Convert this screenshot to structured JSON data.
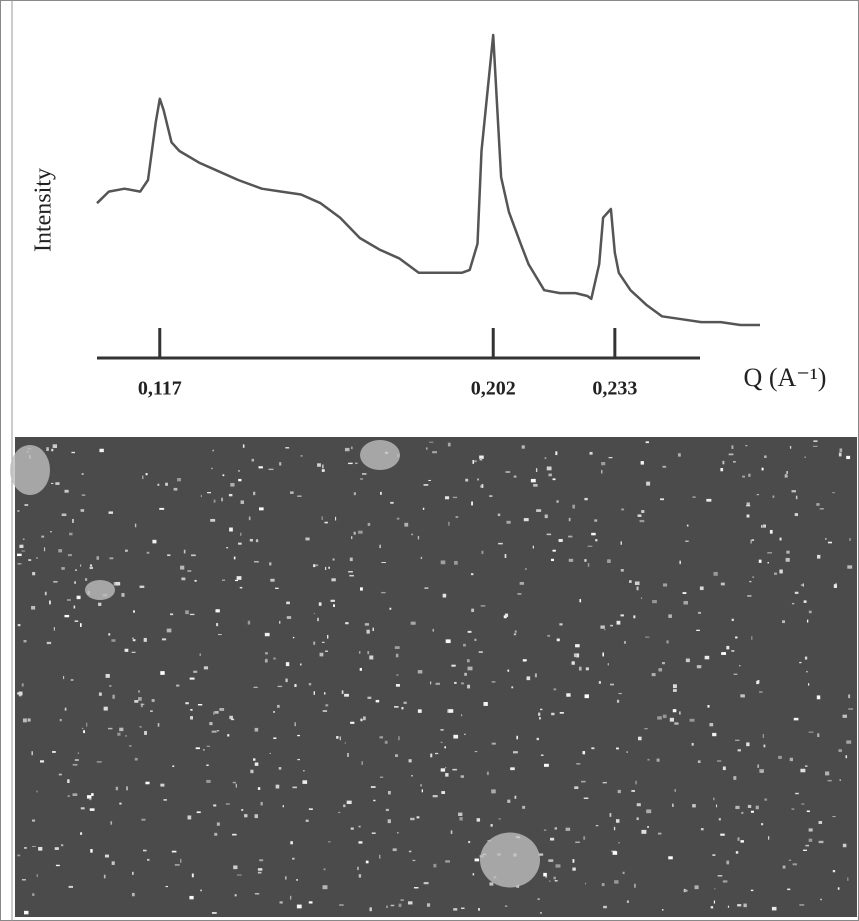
{
  "chart_data": {
    "type": "line",
    "ylabel": "Intensity",
    "xlabel": "Q (A⁻¹)",
    "x": [
      0.101,
      0.104,
      0.108,
      0.112,
      0.114,
      0.116,
      0.117,
      0.118,
      0.12,
      0.122,
      0.127,
      0.132,
      0.137,
      0.143,
      0.148,
      0.153,
      0.158,
      0.163,
      0.168,
      0.173,
      0.178,
      0.183,
      0.188,
      0.194,
      0.196,
      0.198,
      0.199,
      0.202,
      0.203,
      0.204,
      0.206,
      0.209,
      0.211,
      0.215,
      0.219,
      0.223,
      0.226,
      0.227,
      0.229,
      0.23,
      0.232,
      0.233,
      0.234,
      0.237,
      0.241,
      0.245,
      0.25,
      0.255,
      0.26,
      0.265,
      0.27
    ],
    "series": [
      {
        "color": "#555555",
        "values": [
          42,
          46,
          47,
          46,
          50,
          70,
          78,
          74,
          63,
          60,
          56,
          53,
          50,
          47,
          46,
          45,
          42,
          37,
          30,
          26,
          23,
          18,
          18,
          18,
          19,
          28,
          60,
          100,
          75,
          51,
          39,
          28,
          21,
          12,
          11,
          11,
          10,
          9,
          21,
          37,
          40,
          25,
          18,
          12,
          7,
          3,
          2,
          1,
          1,
          0,
          0
        ]
      }
    ],
    "xlim": [
      0.101,
      0.27
    ],
    "ylim": [
      0,
      100
    ],
    "xticks": [
      {
        "value": 0.117,
        "label": "0,117"
      },
      {
        "value": 0.202,
        "label": "0,202"
      },
      {
        "value": 0.233,
        "label": "0,233"
      }
    ]
  }
}
